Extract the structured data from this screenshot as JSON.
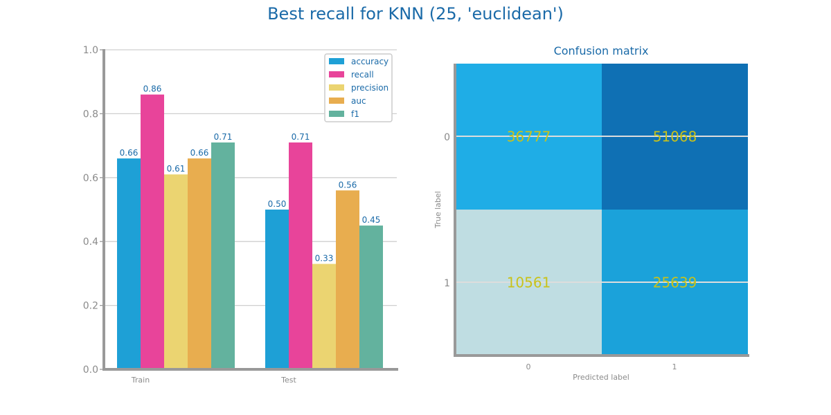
{
  "figure": {
    "title": "Best recall for KNN (25, 'euclidean')"
  },
  "chart_data": [
    {
      "type": "bar",
      "categories": [
        "Train",
        "Test"
      ],
      "series": [
        {
          "name": "accuracy",
          "values": [
            0.66,
            0.5
          ],
          "color": "#1ea0d6"
        },
        {
          "name": "recall",
          "values": [
            0.86,
            0.71
          ],
          "color": "#e8449a"
        },
        {
          "name": "precision",
          "values": [
            0.61,
            0.33
          ],
          "color": "#ebd471"
        },
        {
          "name": "auc",
          "values": [
            0.66,
            0.56
          ],
          "color": "#e8ad4f"
        },
        {
          "name": "f1",
          "values": [
            0.71,
            0.45
          ],
          "color": "#63b29e"
        }
      ],
      "value_labels": [
        [
          "0.66",
          "0.50"
        ],
        [
          "0.86",
          "0.71"
        ],
        [
          "0.61",
          "0.33"
        ],
        [
          "0.66",
          "0.56"
        ],
        [
          "0.71",
          "0.45"
        ]
      ],
      "ylim": [
        0,
        1.0
      ],
      "yticks": [
        "0.0",
        "0.2",
        "0.4",
        "0.6",
        "0.8",
        "1.0"
      ],
      "grid": "horizontal",
      "legend_position": "top-right"
    },
    {
      "type": "heatmap",
      "title": "Confusion matrix",
      "xlabel": "Predicted label",
      "ylabel": "True label",
      "x_ticks": [
        "0",
        "1"
      ],
      "y_ticks": [
        "0",
        "1"
      ],
      "matrix": [
        [
          36777,
          51068
        ],
        [
          10561,
          25639
        ]
      ],
      "cell_labels": [
        [
          "36777",
          "51068"
        ],
        [
          "10561",
          "25639"
        ]
      ],
      "cell_colors": [
        [
          "#1fade6",
          "#0f70b4"
        ],
        [
          "#bfdde2",
          "#1ba2da"
        ]
      ],
      "annotation_color": "#c9c21a"
    }
  ],
  "colors": {
    "title": "#1a6aa8",
    "tick_text": "#8a8a8a",
    "value_label": "#1a6aa8",
    "axis_line": "#999999",
    "grid": "#cfcfcf"
  }
}
